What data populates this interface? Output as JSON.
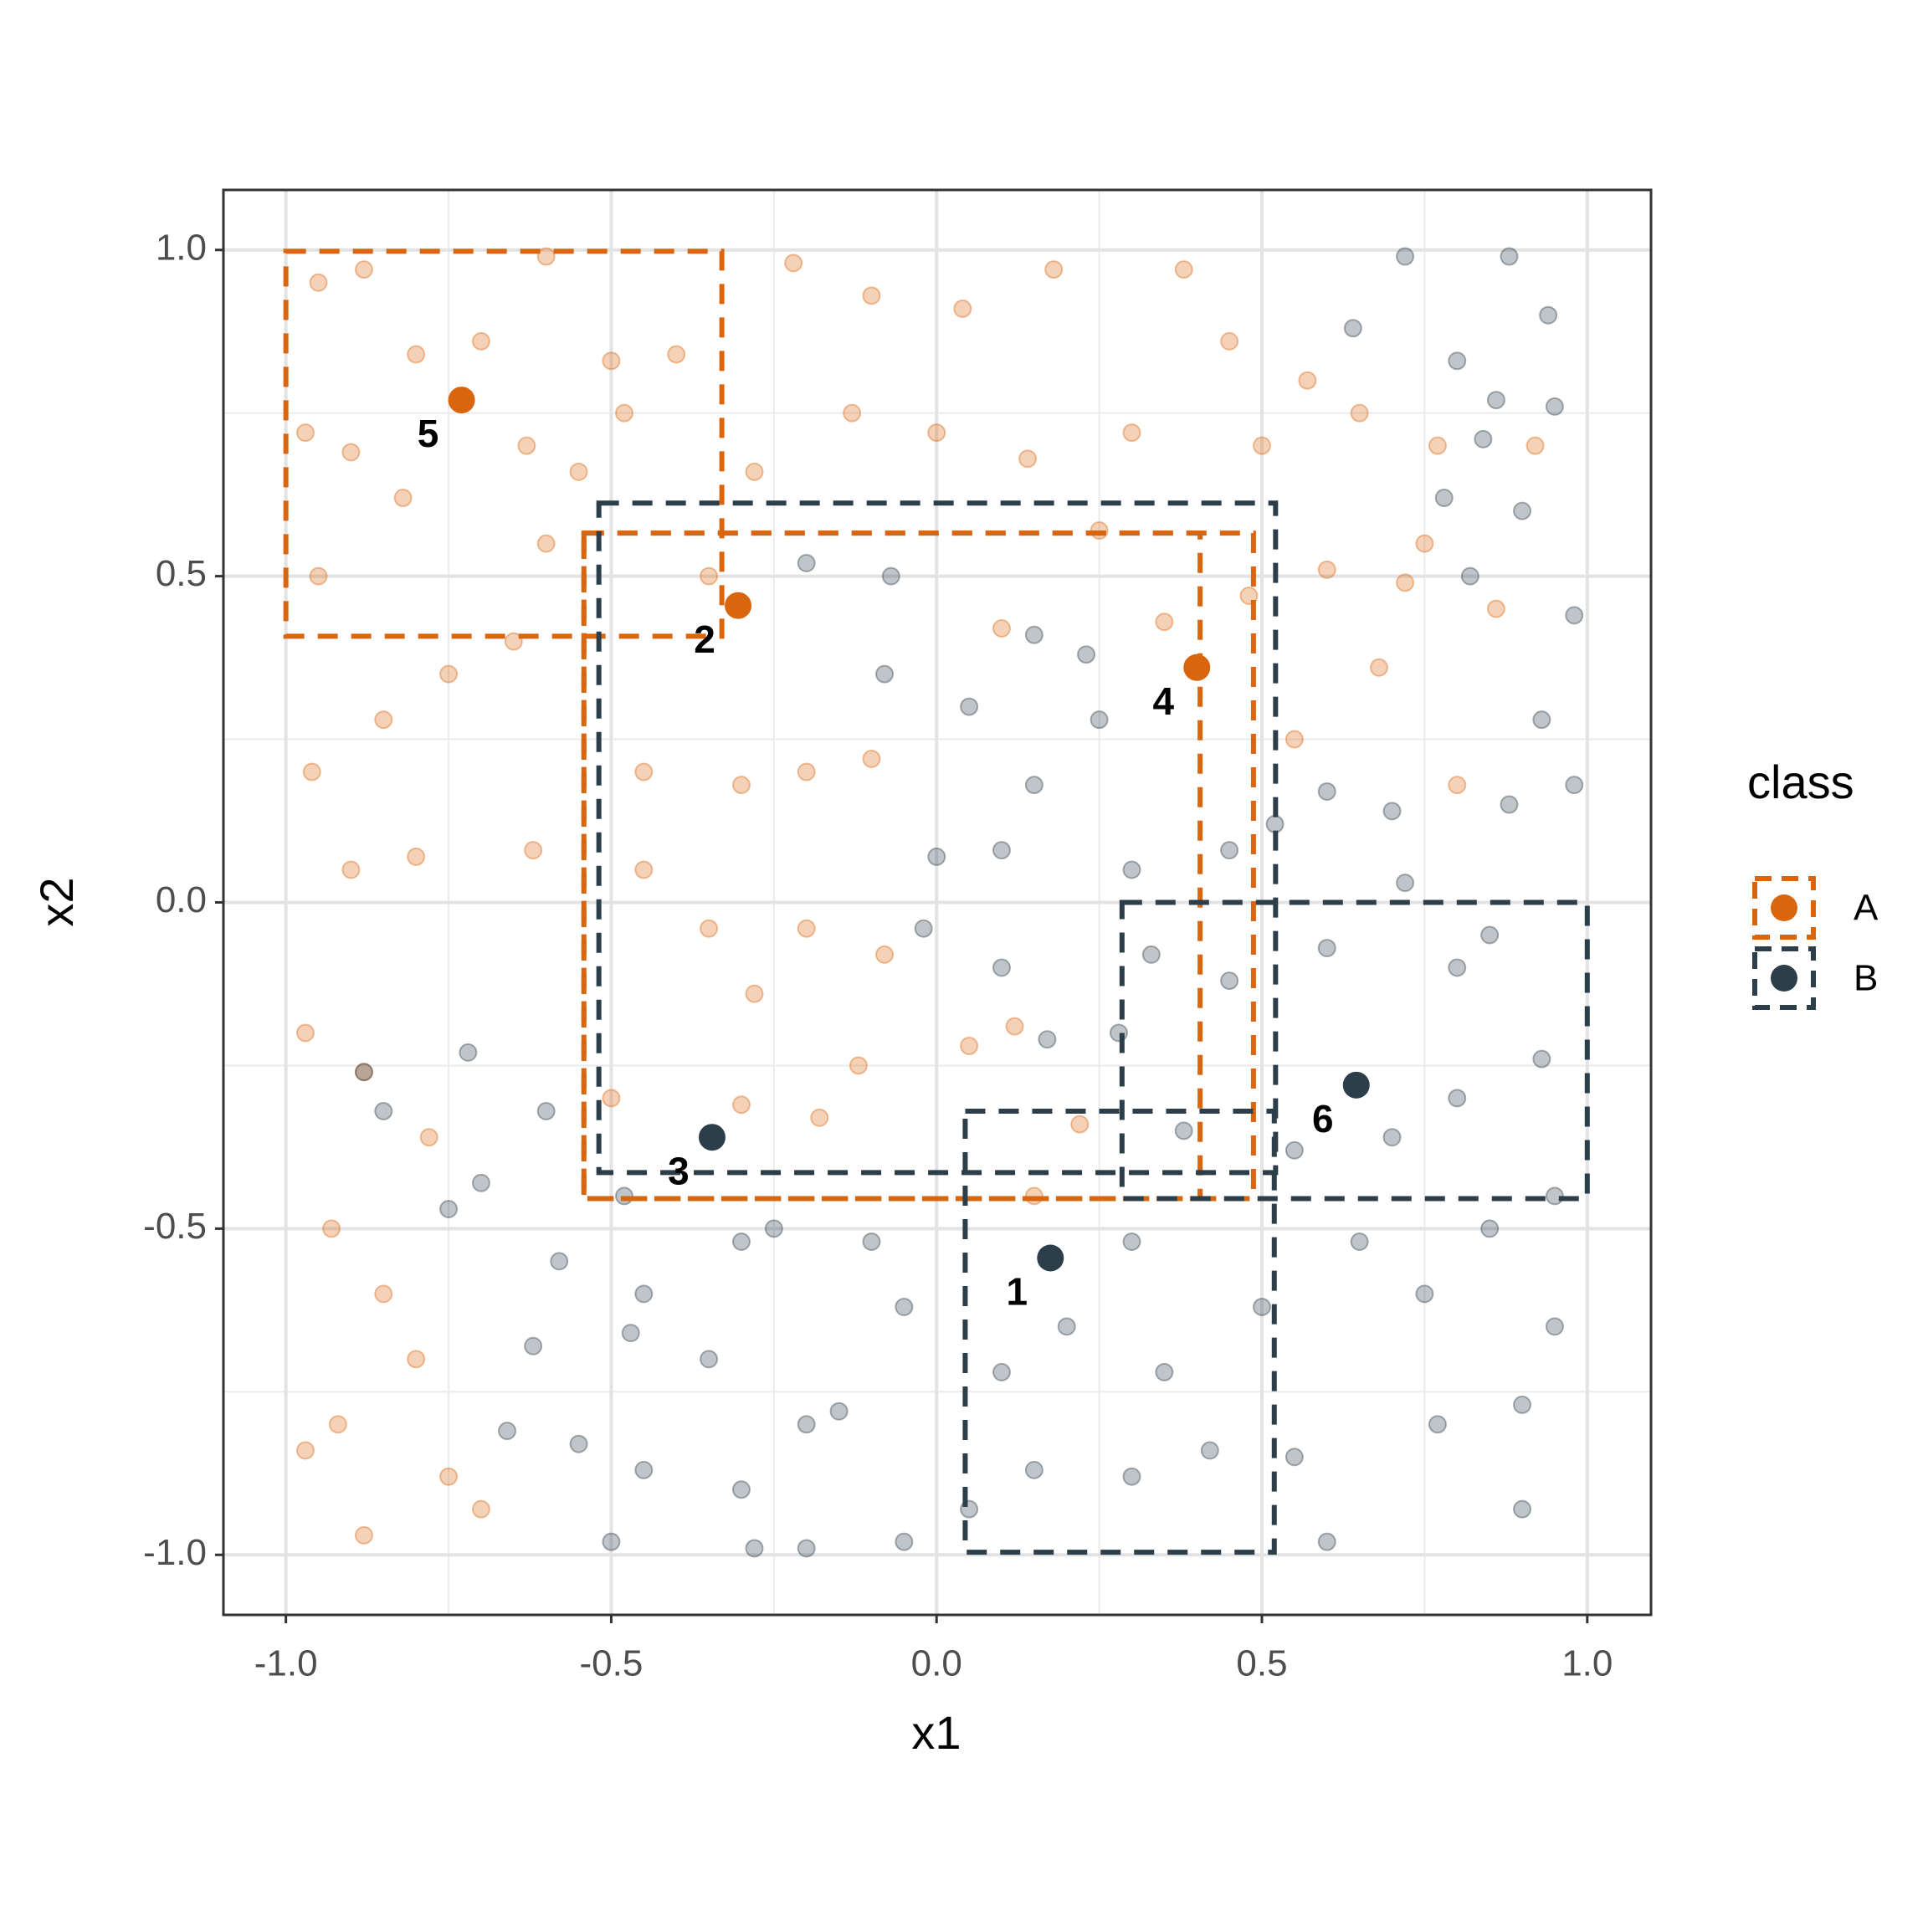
{
  "chart_data": {
    "type": "scatter",
    "xlabel": "x1",
    "ylabel": "x2",
    "xlim": [
      -1.096,
      1.098
    ],
    "ylim": [
      -1.092,
      1.092
    ],
    "xticks": [
      {
        "value": -1,
        "label": "-1.0"
      },
      {
        "value": -0.5,
        "label": "-0.5"
      },
      {
        "value": 0,
        "label": "0.0"
      },
      {
        "value": 0.5,
        "label": "0.5"
      },
      {
        "value": 1,
        "label": "1.0"
      }
    ],
    "yticks": [
      {
        "value": -1,
        "label": "-1.0"
      },
      {
        "value": -0.5,
        "label": "-0.5"
      },
      {
        "value": 0,
        "label": "0.0"
      },
      {
        "value": 0.5,
        "label": "0.5"
      },
      {
        "value": 1,
        "label": "1.0"
      }
    ],
    "minor_grid": [
      -0.75,
      -0.25,
      0.25,
      0.75
    ],
    "grid": true,
    "legend_title": "class",
    "legend": "right",
    "series": [
      {
        "name": "A",
        "color": "#d9660f",
        "x": [
          -0.95,
          -0.88,
          -0.8,
          -0.7,
          -0.6,
          -0.5,
          -0.4,
          -0.22,
          -0.1,
          0.04,
          0.18,
          0.38,
          0.45,
          0.57,
          0.65,
          0.77,
          -0.97,
          -0.9,
          -0.82,
          -0.63,
          -0.55,
          -0.48,
          -0.28,
          -0.13,
          0.0,
          0.14,
          0.3,
          0.5,
          0.6,
          0.72,
          0.86,
          -0.95,
          -0.75,
          -0.65,
          -0.85,
          -0.96,
          -0.8,
          -0.9,
          -0.62,
          -0.45,
          -0.3,
          -0.2,
          -0.1,
          -0.45,
          -0.35,
          -0.2,
          -0.08,
          0.05,
          0.12,
          -0.28,
          -0.12,
          -0.5,
          -0.3,
          -0.18,
          0.22,
          0.15,
          -0.97,
          -0.88,
          -0.78,
          -0.93,
          -0.85,
          -0.8,
          -0.92,
          -0.75,
          -0.88,
          -0.7,
          -0.97,
          0.35,
          0.25,
          0.48,
          0.68,
          0.8,
          0.55,
          0.1,
          -0.35,
          -0.6,
          0.75,
          0.92
        ],
        "values": [
          0.95,
          0.97,
          0.84,
          0.86,
          0.99,
          0.83,
          0.84,
          0.98,
          0.93,
          0.91,
          0.97,
          0.97,
          0.86,
          0.8,
          0.75,
          0.7,
          0.72,
          0.69,
          0.62,
          0.7,
          0.66,
          0.75,
          0.66,
          0.75,
          0.72,
          0.68,
          0.72,
          0.7,
          0.51,
          0.49,
          0.45,
          0.5,
          0.35,
          0.4,
          0.28,
          0.2,
          0.07,
          0.05,
          0.08,
          0.2,
          0.18,
          0.2,
          0.22,
          0.05,
          -0.04,
          -0.04,
          -0.08,
          -0.22,
          -0.19,
          -0.14,
          -0.25,
          -0.3,
          -0.31,
          -0.33,
          -0.34,
          -0.45,
          -0.2,
          -0.26,
          -0.36,
          -0.5,
          -0.6,
          -0.7,
          -0.8,
          -0.88,
          -0.97,
          -0.93,
          -0.84,
          0.43,
          0.57,
          0.47,
          0.36,
          0.18,
          0.25,
          0.42,
          0.5,
          0.55,
          0.55,
          0.7
        ],
        "highlights": [
          {
            "label": "2",
            "x": -0.305,
            "y": 0.455
          },
          {
            "label": "4",
            "x": 0.4,
            "y": 0.36
          },
          {
            "label": "5",
            "x": -0.73,
            "y": 0.77
          }
        ],
        "rects": [
          {
            "xmin": -1.0,
            "xmax": -0.33,
            "ymin": 0.408,
            "ymax": 0.998
          },
          {
            "xmin": -0.542,
            "xmax": 0.487,
            "ymin": -0.454,
            "ymax": 0.566
          },
          {
            "xmin": -0.542,
            "xmax": 0.405,
            "ymin": -0.454,
            "ymax": 0.566
          }
        ]
      },
      {
        "name": "B",
        "color": "#2c3e4a",
        "x": [
          0.72,
          0.88,
          0.94,
          0.64,
          0.8,
          0.86,
          0.95,
          0.84,
          0.78,
          0.9,
          0.82,
          0.98,
          0.93,
          0.98,
          0.88,
          0.6,
          0.7,
          0.52,
          0.45,
          0.3,
          0.15,
          0.05,
          -0.08,
          -0.2,
          -0.07,
          0.15,
          0.23,
          0.1,
          0.0,
          -0.02,
          0.1,
          0.17,
          0.33,
          0.45,
          0.6,
          0.8,
          0.93,
          0.8,
          0.7,
          0.55,
          0.38,
          0.28,
          0.95,
          0.65,
          0.75,
          0.85,
          0.95,
          0.9,
          0.77,
          0.55,
          0.42,
          0.3,
          0.15,
          0.05,
          -0.05,
          -0.2,
          -0.28,
          -0.5,
          -0.45,
          -0.3,
          -0.2,
          -0.15,
          -0.35,
          -0.47,
          -0.62,
          -0.55,
          -0.66,
          -0.58,
          -0.45,
          -0.3,
          -0.1,
          -0.75,
          -0.7,
          -0.6,
          -0.72,
          -0.88,
          -0.85,
          -0.48,
          -0.25,
          -0.05,
          0.2,
          0.35,
          0.1,
          0.85,
          0.72,
          0.25,
          0.3,
          0.5,
          0.6,
          0.9
        ],
        "values": [
          0.99,
          0.99,
          0.9,
          0.88,
          0.83,
          0.77,
          0.76,
          0.71,
          0.62,
          0.6,
          0.5,
          0.44,
          0.28,
          0.18,
          0.15,
          0.17,
          0.14,
          0.12,
          0.08,
          0.05,
          0.18,
          0.3,
          0.35,
          0.52,
          0.5,
          0.41,
          0.38,
          0.08,
          0.07,
          -0.04,
          -0.1,
          -0.21,
          -0.08,
          -0.12,
          -0.07,
          -0.1,
          -0.24,
          -0.3,
          -0.36,
          -0.38,
          -0.35,
          -0.2,
          -0.45,
          -0.52,
          -0.6,
          -0.5,
          -0.65,
          -0.77,
          -0.8,
          -0.85,
          -0.84,
          -0.88,
          -0.87,
          -0.93,
          -0.98,
          -0.99,
          -0.99,
          -0.98,
          -0.87,
          -0.9,
          -0.8,
          -0.78,
          -0.7,
          -0.66,
          -0.68,
          -0.83,
          -0.81,
          -0.55,
          -0.6,
          -0.52,
          -0.52,
          -0.47,
          -0.43,
          -0.32,
          -0.23,
          -0.26,
          -0.32,
          -0.45,
          -0.5,
          -0.62,
          -0.65,
          -0.72,
          -0.72,
          -0.05,
          0.03,
          0.28,
          -0.52,
          -0.62,
          -0.98,
          -0.93
        ],
        "highlights": [
          {
            "label": "1",
            "x": 0.175,
            "y": -0.545
          },
          {
            "label": "3",
            "x": -0.345,
            "y": -0.36
          },
          {
            "label": "6",
            "x": 0.645,
            "y": -0.28
          }
        ],
        "rects": [
          {
            "xmin": -0.519,
            "xmax": 0.521,
            "ymin": -0.414,
            "ymax": 0.612
          },
          {
            "xmin": 0.044,
            "xmax": 0.519,
            "ymin": -0.996,
            "ymax": -0.32
          },
          {
            "xmin": 0.285,
            "xmax": 1.0,
            "ymin": -0.454,
            "ymax": 0.0
          }
        ]
      }
    ]
  }
}
